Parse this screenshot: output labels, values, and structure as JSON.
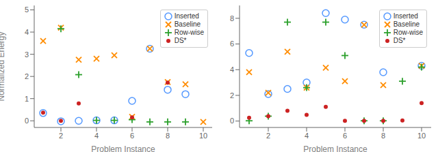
{
  "chart_data": [
    {
      "type": "scatter",
      "xlabel": "Problem Instance",
      "ylabel": "Normalized Energy",
      "x": [
        1,
        2,
        3,
        4,
        5,
        6,
        7,
        8,
        9,
        10
      ],
      "series": [
        {
          "name": "Inserted",
          "color": "#5599ff",
          "marker": "circle_open",
          "values": [
            0.35,
            -0.02,
            0.0,
            0.02,
            0.02,
            0.9,
            3.25,
            1.4,
            1.2,
            null
          ]
        },
        {
          "name": "Baseline",
          "color": "#ff8c00",
          "marker": "x",
          "values": [
            3.6,
            4.2,
            2.75,
            2.8,
            2.95,
            0.18,
            3.25,
            1.75,
            1.65,
            -0.05
          ]
        },
        {
          "name": "Row-wise",
          "color": "#2ca02c",
          "marker": "plus",
          "values": [
            null,
            4.15,
            2.08,
            0.02,
            0.02,
            0.05,
            -0.05,
            -0.05,
            -0.05,
            null
          ]
        },
        {
          "name": "DS*",
          "color": "#cc2222",
          "marker": "circle",
          "values": [
            0.37,
            0.0,
            0.78,
            null,
            null,
            0.15,
            null,
            1.72,
            null,
            null
          ]
        }
      ],
      "xlim": [
        0.5,
        10.5
      ],
      "xticks": [
        2,
        4,
        6,
        8,
        10
      ],
      "ylim": [
        -0.3,
        5.2
      ],
      "yticks": [
        0,
        1,
        2,
        3,
        4,
        5
      ],
      "grid": false,
      "legend": "upper right"
    },
    {
      "type": "scatter",
      "xlabel": "Problem Instance",
      "x": [
        1,
        2,
        3,
        4,
        5,
        6,
        7,
        8,
        9,
        10
      ],
      "series": [
        {
          "name": "Inserted",
          "color": "#5599ff",
          "marker": "circle_open",
          "values": [
            5.3,
            2.1,
            2.5,
            3.0,
            8.4,
            7.9,
            7.5,
            3.8,
            null,
            4.3
          ]
        },
        {
          "name": "Baseline",
          "color": "#ff8c00",
          "marker": "x",
          "values": [
            3.8,
            2.2,
            5.4,
            2.6,
            4.15,
            3.1,
            7.5,
            2.8,
            null,
            4.3
          ]
        },
        {
          "name": "Row-wise",
          "color": "#2ca02c",
          "marker": "plus",
          "values": [
            0.02,
            0.38,
            7.7,
            2.6,
            7.7,
            5.1,
            0.02,
            0.02,
            3.1,
            4.2
          ]
        },
        {
          "name": "DS*",
          "color": "#cc2222",
          "marker": "circle",
          "values": [
            0.25,
            0.38,
            0.8,
            0.48,
            1.1,
            0.02,
            0.02,
            0.02,
            0.05,
            1.4
          ]
        }
      ],
      "xlim": [
        0.5,
        10.5
      ],
      "xticks": [
        2,
        4,
        6,
        8,
        10
      ],
      "ylim": [
        -0.5,
        9.0
      ],
      "yticks": [
        0,
        2,
        4,
        6,
        8
      ],
      "grid": false,
      "legend": "upper right"
    }
  ]
}
